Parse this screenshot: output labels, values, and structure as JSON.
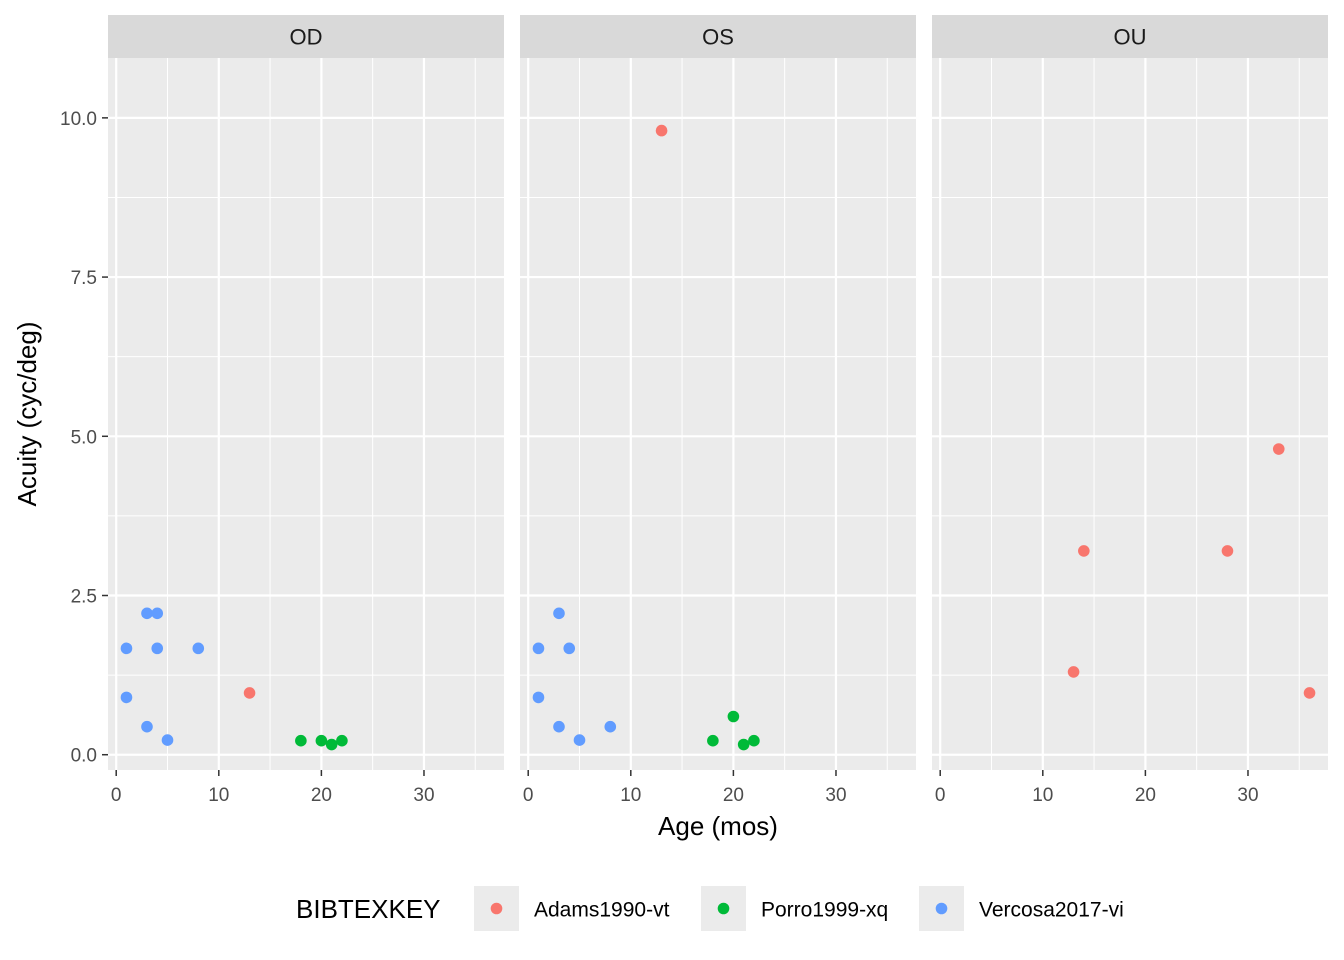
{
  "chart_data": {
    "type": "scatter",
    "facet_variable": "eye",
    "panels": [
      {
        "label": "OD",
        "points": [
          {
            "series": "Vercosa2017-vi",
            "x": 1,
            "y": 1.67
          },
          {
            "series": "Vercosa2017-vi",
            "x": 1,
            "y": 0.9
          },
          {
            "series": "Vercosa2017-vi",
            "x": 3,
            "y": 2.22
          },
          {
            "series": "Vercosa2017-vi",
            "x": 4,
            "y": 2.22
          },
          {
            "series": "Vercosa2017-vi",
            "x": 4,
            "y": 1.67
          },
          {
            "series": "Vercosa2017-vi",
            "x": 3,
            "y": 0.44
          },
          {
            "series": "Vercosa2017-vi",
            "x": 5,
            "y": 0.23
          },
          {
            "series": "Vercosa2017-vi",
            "x": 8,
            "y": 1.67
          },
          {
            "series": "Adams1990-vt",
            "x": 13,
            "y": 0.97
          },
          {
            "series": "Porro1999-xq",
            "x": 18,
            "y": 0.22
          },
          {
            "series": "Porro1999-xq",
            "x": 20,
            "y": 0.22
          },
          {
            "series": "Porro1999-xq",
            "x": 21,
            "y": 0.16
          },
          {
            "series": "Porro1999-xq",
            "x": 22,
            "y": 0.22
          }
        ]
      },
      {
        "label": "OS",
        "points": [
          {
            "series": "Adams1990-vt",
            "x": 13,
            "y": 9.8
          },
          {
            "series": "Vercosa2017-vi",
            "x": 3,
            "y": 2.22
          },
          {
            "series": "Vercosa2017-vi",
            "x": 1,
            "y": 1.67
          },
          {
            "series": "Vercosa2017-vi",
            "x": 4,
            "y": 1.67
          },
          {
            "series": "Vercosa2017-vi",
            "x": 1,
            "y": 0.9
          },
          {
            "series": "Vercosa2017-vi",
            "x": 3,
            "y": 0.44
          },
          {
            "series": "Vercosa2017-vi",
            "x": 5,
            "y": 0.23
          },
          {
            "series": "Vercosa2017-vi",
            "x": 8,
            "y": 0.44
          },
          {
            "series": "Porro1999-xq",
            "x": 18,
            "y": 0.22
          },
          {
            "series": "Porro1999-xq",
            "x": 20,
            "y": 0.6
          },
          {
            "series": "Porro1999-xq",
            "x": 21,
            "y": 0.16
          },
          {
            "series": "Porro1999-xq",
            "x": 22,
            "y": 0.22
          }
        ]
      },
      {
        "label": "OU",
        "points": [
          {
            "series": "Adams1990-vt",
            "x": 13,
            "y": 1.3
          },
          {
            "series": "Adams1990-vt",
            "x": 14,
            "y": 3.2
          },
          {
            "series": "Adams1990-vt",
            "x": 28,
            "y": 3.2
          },
          {
            "series": "Adams1990-vt",
            "x": 33,
            "y": 4.8
          },
          {
            "series": "Adams1990-vt",
            "x": 36,
            "y": 0.97
          }
        ]
      }
    ],
    "xlabel": "Age (mos)",
    "ylabel": "Acuity (cyc/deg)",
    "xlim": [
      -0.8,
      37.8
    ],
    "ylim": [
      -0.24,
      10.94
    ],
    "x_ticks": [
      0,
      10,
      20,
      30
    ],
    "x_tick_labels": [
      "0",
      "10",
      "20",
      "30"
    ],
    "y_ticks": [
      0,
      2.5,
      5,
      7.5,
      10
    ],
    "y_tick_labels": [
      "0.0",
      "2.5",
      "5.0",
      "7.5",
      "10.0"
    ],
    "grid": true,
    "legend": {
      "title": "BIBTEXKEY",
      "position": "bottom",
      "entries": [
        {
          "label": "Adams1990-vt",
          "color": "#F8766D"
        },
        {
          "label": "Porro1999-xq",
          "color": "#00BA38"
        },
        {
          "label": "Vercosa2017-vi",
          "color": "#619CFF"
        }
      ]
    },
    "colors": {
      "panel_background": "#EBEBEB",
      "strip_background": "#D9D9D9",
      "grid": "#FFFFFF"
    }
  }
}
